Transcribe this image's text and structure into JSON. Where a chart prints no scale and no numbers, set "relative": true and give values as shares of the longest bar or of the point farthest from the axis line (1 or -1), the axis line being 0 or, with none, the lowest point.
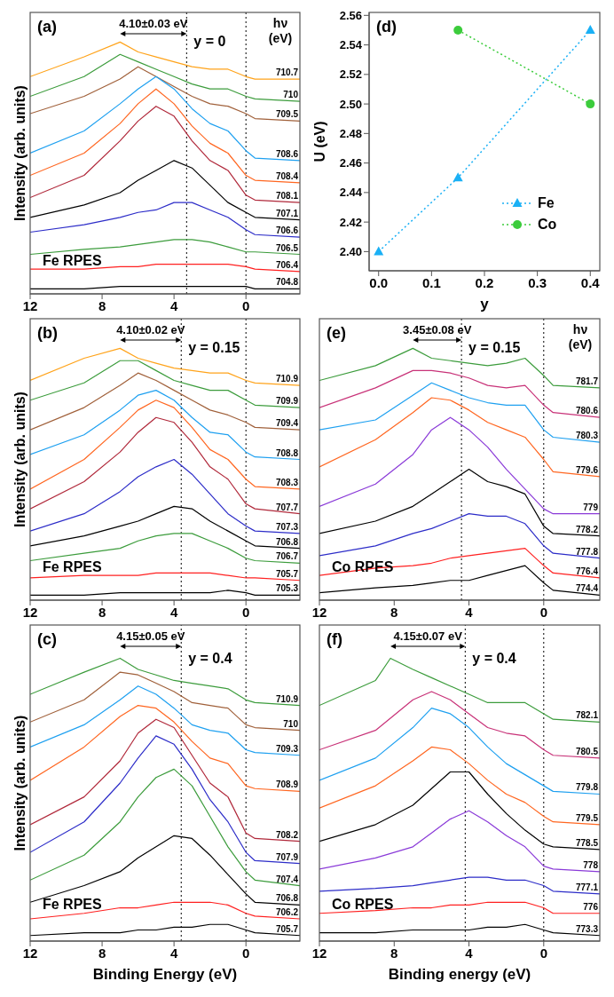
{
  "chart_data": [
    {
      "type": "line",
      "title": "(a)",
      "ylabel": "Intensity (arb. units)",
      "legend_title": "hν (eV)",
      "annotations": [
        "4.10±0.03 eV",
        "y = 0",
        "Fe RPES"
      ],
      "relative": true,
      "tick_labels": "x",
      "x": [
        12,
        9,
        7,
        6,
        5,
        4,
        3,
        2,
        1,
        0,
        -0.5,
        -3
      ],
      "xlim": [
        12,
        -3
      ],
      "xticks": [
        12,
        8,
        4,
        0
      ],
      "ref_lines": [
        {
          "axis": "x",
          "value": 3.3,
          "line_style": "dotted"
        },
        {
          "axis": "x",
          "value": 0,
          "line_style": "dotted"
        }
      ],
      "series": [
        {
          "name": "710.7",
          "color": "#ffa31a",
          "values": [
            0.86,
            0.94,
            1,
            0.96,
            0.94,
            0.92,
            0.9,
            0.89,
            0.89,
            0.86,
            0.85,
            0.85
          ]
        },
        {
          "name": "710",
          "color": "#3c9c3c",
          "values": [
            0.78,
            0.86,
            0.95,
            0.92,
            0.89,
            0.86,
            0.83,
            0.81,
            0.81,
            0.78,
            0.77,
            0.76
          ]
        },
        {
          "name": "709.5",
          "color": "#a0603a",
          "values": [
            0.71,
            0.78,
            0.85,
            0.9,
            0.86,
            0.82,
            0.78,
            0.75,
            0.74,
            0.71,
            0.69,
            0.68
          ]
        },
        {
          "name": "708.6",
          "color": "#1ea0f0",
          "values": [
            0.55,
            0.64,
            0.75,
            0.81,
            0.86,
            0.81,
            0.73,
            0.67,
            0.64,
            0.56,
            0.53,
            0.52
          ]
        },
        {
          "name": "708.4",
          "color": "#ff6620",
          "values": [
            0.46,
            0.55,
            0.67,
            0.75,
            0.81,
            0.75,
            0.66,
            0.59,
            0.55,
            0.46,
            0.44,
            0.43
          ]
        },
        {
          "name": "708.1",
          "color": "#b0283a",
          "values": [
            0.37,
            0.46,
            0.6,
            0.68,
            0.74,
            0.7,
            0.6,
            0.52,
            0.48,
            0.38,
            0.36,
            0.35
          ]
        },
        {
          "name": "707.1",
          "color": "#000000",
          "values": [
            0.29,
            0.34,
            0.39,
            0.44,
            0.48,
            0.52,
            0.49,
            0.42,
            0.35,
            0.31,
            0.29,
            0.28
          ]
        },
        {
          "name": "706.6",
          "color": "#2c2cc8",
          "values": [
            0.23,
            0.26,
            0.29,
            0.31,
            0.32,
            0.35,
            0.35,
            0.32,
            0.29,
            0.24,
            0.22,
            0.21
          ]
        },
        {
          "name": "706.5",
          "color": "#3c9c3c",
          "values": [
            0.14,
            0.16,
            0.17,
            0.18,
            0.19,
            0.2,
            0.2,
            0.19,
            0.17,
            0.15,
            0.15,
            0.14
          ]
        },
        {
          "name": "706.4",
          "color": "#ff2020",
          "values": [
            0.08,
            0.08,
            0.09,
            0.09,
            0.1,
            0.1,
            0.1,
            0.1,
            0.1,
            0.09,
            0.08,
            0.07
          ]
        },
        {
          "name": "704.8",
          "color": "#000000",
          "values": [
            0,
            0,
            0.01,
            0.01,
            0.01,
            0.01,
            0.01,
            0.01,
            0.01,
            0.01,
            0,
            0
          ]
        }
      ]
    },
    {
      "type": "line",
      "title": "(d)",
      "xlabel": "y",
      "ylabel": "U (eV)",
      "legend": "bottom right",
      "line_style": "dotted",
      "xlim": [
        -0.018,
        0.418
      ],
      "ylim": [
        2.387,
        2.562
      ],
      "xticks": [
        {
          "value": 0,
          "label": "0.0"
        },
        0.1,
        0.2,
        0.3,
        0.4
      ],
      "yticks": [
        {
          "value": 2.4,
          "label": "2.40"
        },
        2.42,
        2.44,
        2.46,
        2.48,
        {
          "value": 2.5,
          "label": "2.50"
        },
        2.52,
        2.54,
        2.56
      ],
      "series": [
        {
          "name": "Fe",
          "color": "#1ab0f5",
          "marker": "triangle",
          "x": [
            0,
            0.15,
            0.4
          ],
          "values": [
            2.4,
            2.45,
            2.55
          ]
        },
        {
          "name": "Co",
          "color": "#3ccc3c",
          "marker": "circle",
          "x": [
            0.15,
            0.4
          ],
          "values": [
            2.55,
            2.5
          ]
        }
      ]
    },
    {
      "type": "line",
      "title": "(b)",
      "ylabel": "Intensity (arb. units)",
      "annotations": [
        "4.10±0.02 eV",
        "y = 0.15",
        "Fe RPES"
      ],
      "relative": true,
      "tick_labels": "x",
      "x": [
        12,
        9,
        7,
        6,
        5,
        4,
        3,
        2,
        1,
        0,
        -0.5,
        -3
      ],
      "xlim": [
        12,
        -3
      ],
      "xticks": [
        12,
        8,
        4,
        0
      ],
      "ref_lines": [
        {
          "axis": "x",
          "value": 3.6,
          "line_style": "dotted"
        },
        {
          "axis": "x",
          "value": 0,
          "line_style": "dotted"
        }
      ],
      "series": [
        {
          "name": "710.9",
          "color": "#ffa31a",
          "values": [
            0.87,
            0.96,
            1,
            0.96,
            0.94,
            0.92,
            0.91,
            0.9,
            0.9,
            0.87,
            0.86,
            0.85
          ]
        },
        {
          "name": "709.9",
          "color": "#3c9c3c",
          "values": [
            0.79,
            0.86,
            0.95,
            0.95,
            0.91,
            0.87,
            0.85,
            0.83,
            0.83,
            0.79,
            0.77,
            0.76
          ]
        },
        {
          "name": "709.4",
          "color": "#a0603a",
          "values": [
            0.67,
            0.76,
            0.85,
            0.9,
            0.87,
            0.83,
            0.79,
            0.75,
            0.73,
            0.7,
            0.68,
            0.67
          ]
        },
        {
          "name": "708.8",
          "color": "#1ea0f0",
          "values": [
            0.57,
            0.65,
            0.75,
            0.81,
            0.83,
            0.79,
            0.72,
            0.66,
            0.65,
            0.58,
            0.56,
            0.55
          ]
        },
        {
          "name": "708.3",
          "color": "#ff6620",
          "values": [
            0.43,
            0.55,
            0.68,
            0.75,
            0.79,
            0.76,
            0.68,
            0.59,
            0.55,
            0.47,
            0.44,
            0.43
          ]
        },
        {
          "name": "707.7",
          "color": "#b0283a",
          "values": [
            0.35,
            0.46,
            0.58,
            0.66,
            0.72,
            0.7,
            0.62,
            0.52,
            0.47,
            0.37,
            0.35,
            0.33
          ]
        },
        {
          "name": "707.3",
          "color": "#2c2cc8",
          "values": [
            0.26,
            0.33,
            0.42,
            0.48,
            0.52,
            0.55,
            0.49,
            0.41,
            0.33,
            0.28,
            0.26,
            0.25
          ]
        },
        {
          "name": "706.8",
          "color": "#000000",
          "values": [
            0.2,
            0.24,
            0.28,
            0.3,
            0.33,
            0.36,
            0.35,
            0.3,
            0.26,
            0.22,
            0.2,
            0.19
          ]
        },
        {
          "name": "706.7",
          "color": "#3c9c3c",
          "values": [
            0.14,
            0.17,
            0.19,
            0.22,
            0.24,
            0.25,
            0.25,
            0.22,
            0.19,
            0.15,
            0.14,
            0.13
          ]
        },
        {
          "name": "705.7",
          "color": "#ff2020",
          "values": [
            0.07,
            0.08,
            0.08,
            0.08,
            0.09,
            0.09,
            0.09,
            0.09,
            0.08,
            0.07,
            0.07,
            0.06
          ]
        },
        {
          "name": "705.3",
          "color": "#000000",
          "values": [
            0,
            0,
            0.01,
            0.01,
            0.01,
            0.01,
            0.01,
            0.01,
            0.02,
            0.01,
            0,
            0
          ]
        }
      ]
    },
    {
      "type": "line",
      "title": "(e)",
      "legend_title": "hν (eV)",
      "annotations": [
        "3.45±0.08 eV",
        "y = 0.15",
        "Co RPES"
      ],
      "relative": true,
      "tick_labels": "x",
      "x": [
        12,
        9,
        7,
        6,
        5,
        4,
        3,
        2,
        1,
        0,
        -0.5,
        -3
      ],
      "xlim": [
        12,
        -3
      ],
      "xticks": [
        12,
        8,
        4,
        0
      ],
      "ref_lines": [
        {
          "axis": "x",
          "value": 4.4,
          "line_style": "dotted"
        },
        {
          "axis": "x",
          "value": 0,
          "line_style": "dotted"
        }
      ],
      "series": [
        {
          "name": "781.7",
          "color": "#3c9c3c",
          "values": [
            0.87,
            0.93,
            1,
            0.96,
            0.95,
            0.94,
            0.93,
            0.94,
            0.96,
            0.89,
            0.85,
            0.84
          ]
        },
        {
          "name": "780.6",
          "color": "#c83278",
          "values": [
            0.76,
            0.84,
            0.91,
            0.91,
            0.9,
            0.88,
            0.85,
            0.84,
            0.85,
            0.77,
            0.74,
            0.72
          ]
        },
        {
          "name": "780.3",
          "color": "#1ea0f0",
          "values": [
            0.67,
            0.71,
            0.81,
            0.86,
            0.83,
            0.8,
            0.78,
            0.77,
            0.77,
            0.67,
            0.64,
            0.62
          ]
        },
        {
          "name": "779.6",
          "color": "#ff6620",
          "values": [
            0.52,
            0.63,
            0.74,
            0.8,
            0.79,
            0.75,
            0.7,
            0.67,
            0.64,
            0.55,
            0.5,
            0.48
          ]
        },
        {
          "name": "779",
          "color": "#8a3ad8",
          "values": [
            0.36,
            0.45,
            0.57,
            0.67,
            0.72,
            0.67,
            0.6,
            0.51,
            0.43,
            0.35,
            0.33,
            0.33
          ]
        },
        {
          "name": "778.2",
          "color": "#000000",
          "values": [
            0.25,
            0.3,
            0.36,
            0.41,
            0.46,
            0.51,
            0.46,
            0.44,
            0.41,
            0.28,
            0.25,
            0.24
          ]
        },
        {
          "name": "777.8",
          "color": "#2c2cc8",
          "values": [
            0.16,
            0.2,
            0.25,
            0.27,
            0.3,
            0.33,
            0.32,
            0.32,
            0.29,
            0.2,
            0.17,
            0.15
          ]
        },
        {
          "name": "776.4",
          "color": "#ff2020",
          "values": [
            0.08,
            0.11,
            0.12,
            0.13,
            0.15,
            0.16,
            0.17,
            0.18,
            0.19,
            0.12,
            0.09,
            0.07
          ]
        },
        {
          "name": "774.4",
          "color": "#000000",
          "values": [
            0.01,
            0.03,
            0.04,
            0.05,
            0.06,
            0.06,
            0.08,
            0.1,
            0.12,
            0.05,
            0.02,
            0
          ]
        }
      ]
    },
    {
      "type": "line",
      "title": "(c)",
      "ylabel": "Intensity (arb. units)",
      "xlabel": "Binding Energy (eV)",
      "annotations": [
        "4.15±0.05 eV",
        "y = 0.4",
        "Fe RPES"
      ],
      "relative": true,
      "tick_labels": "x",
      "x": [
        12,
        9,
        7,
        6,
        5,
        4,
        3,
        2,
        1,
        0,
        -0.5,
        -3
      ],
      "xlim": [
        12,
        -3
      ],
      "xticks": [
        12,
        8,
        4,
        0
      ],
      "ref_lines": [
        {
          "axis": "x",
          "value": 3.6,
          "line_style": "dotted"
        },
        {
          "axis": "x",
          "value": 0,
          "line_style": "dotted"
        }
      ],
      "series": [
        {
          "name": "710.9",
          "color": "#3c9c3c",
          "values": [
            0.87,
            0.95,
            1,
            0.96,
            0.94,
            0.92,
            0.91,
            0.9,
            0.89,
            0.85,
            0.84,
            0.83
          ]
        },
        {
          "name": "710",
          "color": "#a0603a",
          "values": [
            0.77,
            0.85,
            0.95,
            0.94,
            0.91,
            0.88,
            0.84,
            0.83,
            0.82,
            0.76,
            0.75,
            0.74
          ]
        },
        {
          "name": "709.3",
          "color": "#1ea0f0",
          "values": [
            0.68,
            0.76,
            0.85,
            0.9,
            0.87,
            0.82,
            0.76,
            0.74,
            0.73,
            0.67,
            0.66,
            0.65
          ]
        },
        {
          "name": "708.9",
          "color": "#ff6620",
          "values": [
            0.56,
            0.68,
            0.79,
            0.83,
            0.82,
            0.77,
            0.7,
            0.64,
            0.62,
            0.54,
            0.53,
            0.52
          ]
        },
        {
          "name": "708.2",
          "color": "#b0283a",
          "values": [
            0.4,
            0.5,
            0.63,
            0.73,
            0.78,
            0.75,
            0.65,
            0.55,
            0.5,
            0.37,
            0.35,
            0.34
          ]
        },
        {
          "name": "707.9",
          "color": "#2c2cc8",
          "values": [
            0.3,
            0.41,
            0.55,
            0.64,
            0.72,
            0.69,
            0.6,
            0.49,
            0.41,
            0.3,
            0.27,
            0.26
          ]
        },
        {
          "name": "707.4",
          "color": "#3c9c3c",
          "values": [
            0.2,
            0.29,
            0.41,
            0.5,
            0.57,
            0.6,
            0.54,
            0.43,
            0.32,
            0.23,
            0.2,
            0.18
          ]
        },
        {
          "name": "706.8",
          "color": "#000000",
          "values": [
            0.12,
            0.18,
            0.23,
            0.28,
            0.32,
            0.36,
            0.35,
            0.29,
            0.22,
            0.15,
            0.12,
            0.11
          ]
        },
        {
          "name": "706.2",
          "color": "#ff2020",
          "values": [
            0.06,
            0.08,
            0.1,
            0.1,
            0.11,
            0.12,
            0.12,
            0.12,
            0.11,
            0.08,
            0.07,
            0.06
          ]
        },
        {
          "name": "705.7",
          "color": "#000000",
          "values": [
            0,
            0.01,
            0.01,
            0.02,
            0.02,
            0.03,
            0.03,
            0.04,
            0.04,
            0.02,
            0.01,
            0
          ]
        }
      ]
    },
    {
      "type": "line",
      "title": "(f)",
      "xlabel": "Binding energy (eV)",
      "annotations": [
        "4.15±0.07 eV",
        "y = 0.4",
        "Co RPES"
      ],
      "relative": true,
      "tick_labels": "x",
      "x": [
        12,
        9,
        7,
        6,
        5,
        4,
        3,
        2,
        1,
        0,
        -0.5,
        -3
      ],
      "xlim": [
        12,
        -3
      ],
      "xticks": [
        12,
        8,
        4,
        0
      ],
      "ref_lines": [
        {
          "axis": "x",
          "value": 4.2,
          "line_style": "dotted"
        },
        {
          "axis": "x",
          "value": 0,
          "line_style": "dotted"
        }
      ],
      "series": [
        {
          "name": "782.1",
          "color": "#3c9c3c",
          "x": [
            12,
            9,
            8.2,
            7,
            6,
            5,
            4,
            3,
            2,
            1,
            0,
            -0.5,
            -3
          ],
          "values": [
            0.83,
            0.92,
            1,
            0.96,
            0.93,
            0.9,
            0.87,
            0.84,
            0.84,
            0.84,
            0.8,
            0.78,
            0.77
          ]
        },
        {
          "name": "780.5",
          "color": "#c83278",
          "values": [
            0.67,
            0.74,
            0.85,
            0.88,
            0.85,
            0.8,
            0.75,
            0.73,
            0.72,
            0.67,
            0.65,
            0.64
          ]
        },
        {
          "name": "779.8",
          "color": "#1ea0f0",
          "values": [
            0.56,
            0.64,
            0.75,
            0.82,
            0.8,
            0.75,
            0.68,
            0.62,
            0.58,
            0.54,
            0.52,
            0.51
          ]
        },
        {
          "name": "779.5",
          "color": "#ff6620",
          "values": [
            0.46,
            0.54,
            0.63,
            0.68,
            0.67,
            0.62,
            0.56,
            0.51,
            0.48,
            0.43,
            0.41,
            0.4
          ]
        },
        {
          "name": "778.5",
          "color": "#000000",
          "values": [
            0.34,
            0.4,
            0.47,
            0.53,
            0.59,
            0.59,
            0.51,
            0.44,
            0.38,
            0.33,
            0.32,
            0.31
          ]
        },
        {
          "name": "778",
          "color": "#8a3ad8",
          "values": [
            0.24,
            0.28,
            0.32,
            0.37,
            0.42,
            0.45,
            0.41,
            0.36,
            0.32,
            0.25,
            0.24,
            0.23
          ]
        },
        {
          "name": "777.1",
          "color": "#2c2cc8",
          "values": [
            0.16,
            0.17,
            0.18,
            0.19,
            0.2,
            0.21,
            0.21,
            0.2,
            0.2,
            0.18,
            0.16,
            0.15
          ]
        },
        {
          "name": "776",
          "color": "#ff2020",
          "values": [
            0.08,
            0.09,
            0.1,
            0.1,
            0.11,
            0.11,
            0.12,
            0.12,
            0.12,
            0.1,
            0.08,
            0.08
          ]
        },
        {
          "name": "773.3",
          "color": "#000000",
          "values": [
            0.01,
            0.01,
            0.02,
            0.02,
            0.02,
            0.02,
            0.03,
            0.03,
            0.04,
            0.02,
            0.01,
            0
          ]
        }
      ]
    }
  ]
}
